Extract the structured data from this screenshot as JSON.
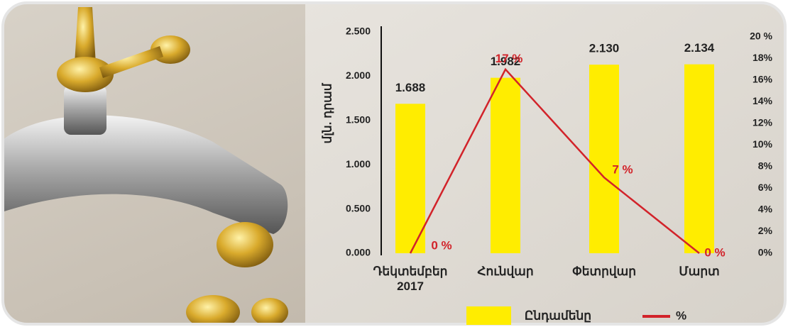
{
  "chart_data": {
    "type": "bar",
    "y_label": "մլն. դրամ",
    "categories": [
      "Դեկտեմբեր 2017",
      "Հունվար",
      "Փետրվար",
      "Մարտ"
    ],
    "series": [
      {
        "name": "Ընդամենը",
        "type": "bar",
        "color": "#ffed00",
        "values": [
          1688,
          1982,
          2130,
          2134
        ],
        "value_labels": [
          "1.688",
          "1.982",
          "2.130",
          "2.134"
        ]
      },
      {
        "name": "%",
        "type": "line",
        "color": "#d2232a",
        "axis": "y2",
        "values": [
          0,
          17,
          7,
          0
        ],
        "value_labels": [
          "0 %",
          "17 %",
          "7 %",
          "0 %"
        ]
      }
    ],
    "ylim": [
      0,
      2500
    ],
    "yticks": [
      {
        "value": 0,
        "label": "0.000"
      },
      {
        "value": 500,
        "label": "0.500"
      },
      {
        "value": 1000,
        "label": "1.000"
      },
      {
        "value": 1500,
        "label": "1.500"
      },
      {
        "value": 2000,
        "label": "2.000"
      },
      {
        "value": 2500,
        "label": "2.500"
      }
    ],
    "y2lim": [
      0,
      20
    ],
    "y2ticks": [
      {
        "value": 0,
        "label": "0%"
      },
      {
        "value": 2,
        "label": "2%"
      },
      {
        "value": 4,
        "label": "4%"
      },
      {
        "value": 6,
        "label": "6%"
      },
      {
        "value": 8,
        "label": "8%"
      },
      {
        "value": 10,
        "label": "10%"
      },
      {
        "value": 12,
        "label": "12%"
      },
      {
        "value": 14,
        "label": "14%"
      },
      {
        "value": 16,
        "label": "16%"
      },
      {
        "value": 18,
        "label": "18%"
      },
      {
        "value": 20,
        "label": "20 %"
      }
    ],
    "grid": false,
    "legend": "bottom"
  }
}
